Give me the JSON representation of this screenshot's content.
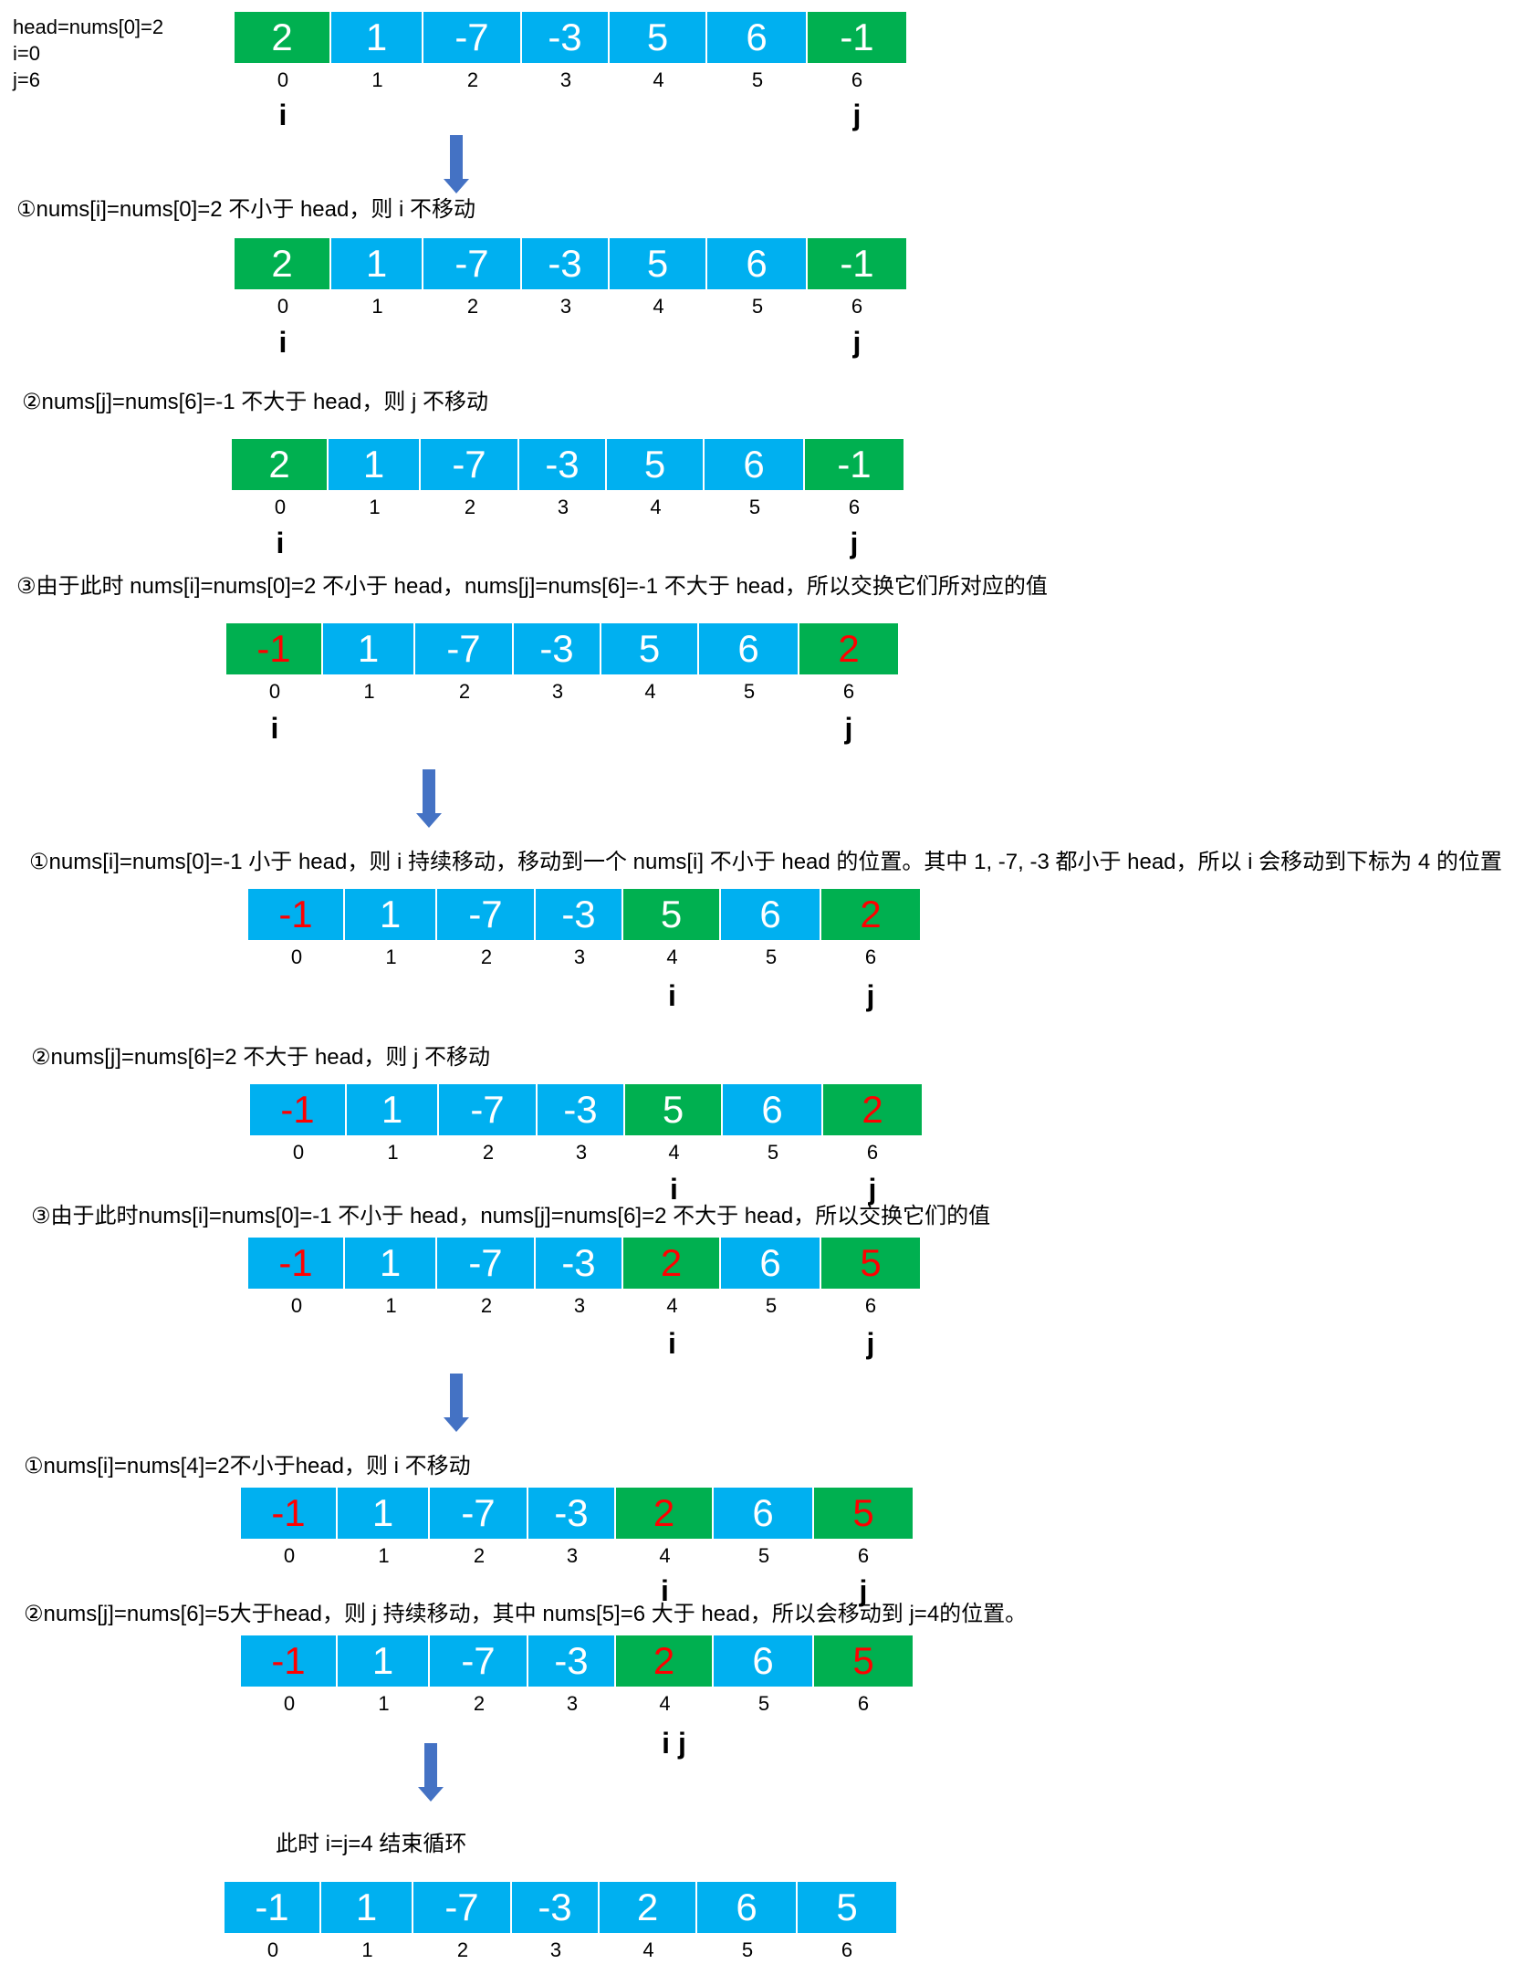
{
  "init": {
    "line1": "head=nums[0]=2",
    "line2": "i=0",
    "line3": "j=6"
  },
  "notes": {
    "s1_1": "①nums[i]=nums[0]=2 不小于 head，则 i 不移动",
    "s1_2": "②nums[j]=nums[6]=-1 不大于 head，则 j 不移动",
    "s1_3": "③由于此时 nums[i]=nums[0]=2 不小于 head，nums[j]=nums[6]=-1 不大于 head，所以交换它们所对应的值",
    "s2_1": "①nums[i]=nums[0]=-1 小于 head，则 i 持续移动，移动到一个 nums[i] 不小于 head 的位置。其中 1, -7, -3 都小于 head，所以 i 会移动到下标为 4 的位置",
    "s2_2": "②nums[j]=nums[6]=2 不大于 head，则 j 不移动",
    "s2_3": "③由于此时nums[i]=nums[0]=-1 不小于 head，nums[j]=nums[6]=2 不大于 head，所以交换它们的值",
    "s3_1": "①nums[i]=nums[4]=2不小于head，则 i 不移动",
    "s3_2": "②nums[j]=nums[6]=5大于head，则 j 持续移动，其中 nums[5]=6 大于 head，所以会移动到 j=4的位置。",
    "end": "此时 i=j=4 结束循环"
  },
  "labels": {
    "i": "i",
    "j": "j",
    "ij": "i j"
  },
  "indices": [
    "0",
    "1",
    "2",
    "3",
    "4",
    "5",
    "6"
  ],
  "colors": {
    "green": "#00b050",
    "blue": "#00b0f0",
    "red": "#ff0000",
    "arrow": "#4472c4"
  },
  "arrays": [
    {
      "cells": [
        {
          "v": "2",
          "bg": "green"
        },
        {
          "v": "1",
          "bg": "blue"
        },
        {
          "v": "-7",
          "bg": "blue"
        },
        {
          "v": "-3",
          "bg": "blue"
        },
        {
          "v": "5",
          "bg": "blue"
        },
        {
          "v": "6",
          "bg": "blue"
        },
        {
          "v": "-1",
          "bg": "green"
        }
      ]
    },
    {
      "cells": [
        {
          "v": "2",
          "bg": "green"
        },
        {
          "v": "1",
          "bg": "blue"
        },
        {
          "v": "-7",
          "bg": "blue"
        },
        {
          "v": "-3",
          "bg": "blue"
        },
        {
          "v": "5",
          "bg": "blue"
        },
        {
          "v": "6",
          "bg": "blue"
        },
        {
          "v": "-1",
          "bg": "green"
        }
      ]
    },
    {
      "cells": [
        {
          "v": "2",
          "bg": "green"
        },
        {
          "v": "1",
          "bg": "blue"
        },
        {
          "v": "-7",
          "bg": "blue"
        },
        {
          "v": "-3",
          "bg": "blue"
        },
        {
          "v": "5",
          "bg": "blue"
        },
        {
          "v": "6",
          "bg": "blue"
        },
        {
          "v": "-1",
          "bg": "green"
        }
      ]
    },
    {
      "cells": [
        {
          "v": "-1",
          "bg": "green",
          "red": true
        },
        {
          "v": "1",
          "bg": "blue"
        },
        {
          "v": "-7",
          "bg": "blue"
        },
        {
          "v": "-3",
          "bg": "blue"
        },
        {
          "v": "5",
          "bg": "blue"
        },
        {
          "v": "6",
          "bg": "blue"
        },
        {
          "v": "2",
          "bg": "green",
          "red": true
        }
      ]
    },
    {
      "cells": [
        {
          "v": "-1",
          "bg": "blue",
          "red": true
        },
        {
          "v": "1",
          "bg": "blue"
        },
        {
          "v": "-7",
          "bg": "blue"
        },
        {
          "v": "-3",
          "bg": "blue"
        },
        {
          "v": "5",
          "bg": "green"
        },
        {
          "v": "6",
          "bg": "blue"
        },
        {
          "v": "2",
          "bg": "green",
          "red": true
        }
      ]
    },
    {
      "cells": [
        {
          "v": "-1",
          "bg": "blue",
          "red": true
        },
        {
          "v": "1",
          "bg": "blue"
        },
        {
          "v": "-7",
          "bg": "blue"
        },
        {
          "v": "-3",
          "bg": "blue"
        },
        {
          "v": "5",
          "bg": "green"
        },
        {
          "v": "6",
          "bg": "blue"
        },
        {
          "v": "2",
          "bg": "green",
          "red": true
        }
      ]
    },
    {
      "cells": [
        {
          "v": "-1",
          "bg": "blue",
          "red": true
        },
        {
          "v": "1",
          "bg": "blue"
        },
        {
          "v": "-7",
          "bg": "blue"
        },
        {
          "v": "-3",
          "bg": "blue"
        },
        {
          "v": "2",
          "bg": "green",
          "red": true
        },
        {
          "v": "6",
          "bg": "blue"
        },
        {
          "v": "5",
          "bg": "green",
          "red": true
        }
      ]
    },
    {
      "cells": [
        {
          "v": "-1",
          "bg": "blue",
          "red": true
        },
        {
          "v": "1",
          "bg": "blue"
        },
        {
          "v": "-7",
          "bg": "blue"
        },
        {
          "v": "-3",
          "bg": "blue"
        },
        {
          "v": "2",
          "bg": "green",
          "red": true
        },
        {
          "v": "6",
          "bg": "blue"
        },
        {
          "v": "5",
          "bg": "green",
          "red": true
        }
      ]
    },
    {
      "cells": [
        {
          "v": "-1",
          "bg": "blue",
          "red": true
        },
        {
          "v": "1",
          "bg": "blue"
        },
        {
          "v": "-7",
          "bg": "blue"
        },
        {
          "v": "-3",
          "bg": "blue"
        },
        {
          "v": "2",
          "bg": "green",
          "red": true
        },
        {
          "v": "6",
          "bg": "blue"
        },
        {
          "v": "5",
          "bg": "green",
          "red": true
        }
      ]
    },
    {
      "cells": [
        {
          "v": "-1",
          "bg": "blue"
        },
        {
          "v": "1",
          "bg": "blue"
        },
        {
          "v": "-7",
          "bg": "blue"
        },
        {
          "v": "-3",
          "bg": "blue"
        },
        {
          "v": "2",
          "bg": "blue"
        },
        {
          "v": "6",
          "bg": "blue"
        },
        {
          "v": "5",
          "bg": "blue"
        }
      ]
    }
  ]
}
